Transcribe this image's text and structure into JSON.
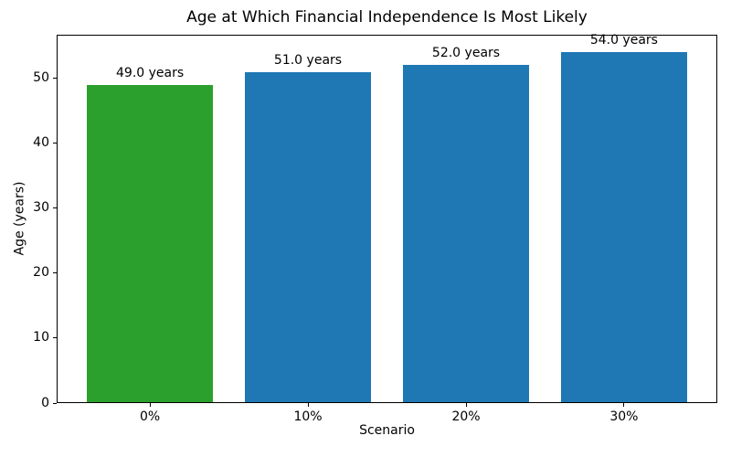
{
  "chart_data": {
    "type": "bar",
    "title": "Age at Which Financial Independence Is Most Likely",
    "xlabel": "Scenario",
    "ylabel": "Age (years)",
    "categories": [
      "0%",
      "10%",
      "20%",
      "30%"
    ],
    "values": [
      49.0,
      51.0,
      52.0,
      54.0
    ],
    "bar_labels": [
      "49.0 years",
      "51.0 years",
      "52.0 years",
      "54.0 years"
    ],
    "bar_colors": [
      "#2ca02c",
      "#1f77b4",
      "#1f77b4",
      "#1f77b4"
    ],
    "yticks": [
      "0",
      "10",
      "20",
      "30",
      "40",
      "50"
    ],
    "ytick_values": [
      0,
      10,
      20,
      30,
      40,
      50
    ],
    "ylim": [
      0,
      56.7
    ],
    "grid": false,
    "legend_position": "none",
    "background": "#ffffff",
    "frame_color": "#000000"
  }
}
